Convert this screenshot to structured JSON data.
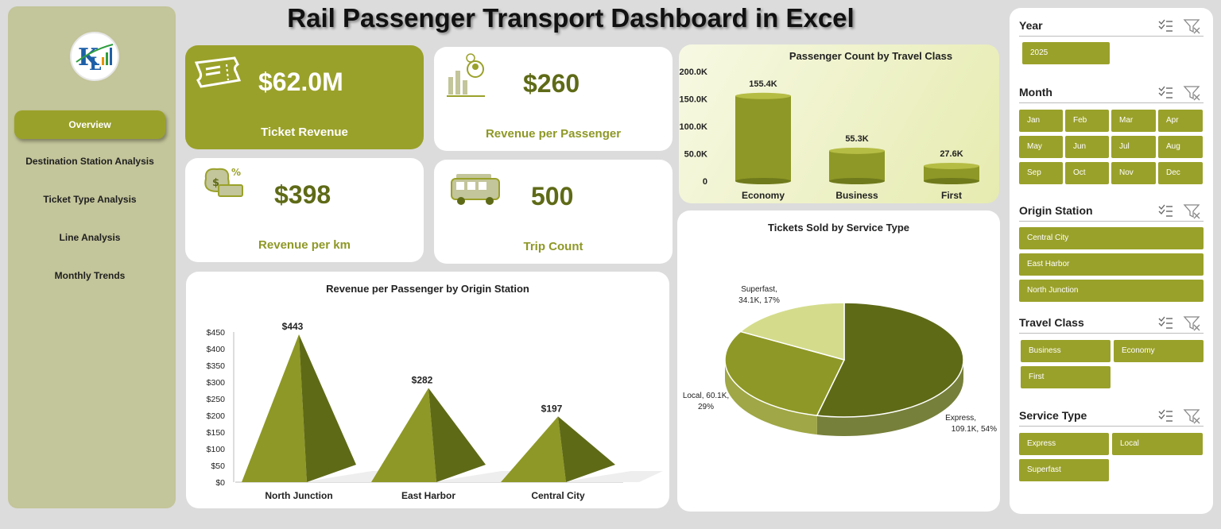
{
  "title": "Rail Passenger Transport Dashboard in Excel",
  "nav": [
    {
      "label": "Overview",
      "active": true
    },
    {
      "label": "Destination Station Analysis",
      "active": false
    },
    {
      "label": "Ticket Type Analysis",
      "active": false
    },
    {
      "label": "Line Analysis",
      "active": false
    },
    {
      "label": "Monthly Trends",
      "active": false
    }
  ],
  "kpis": {
    "ticket_revenue": {
      "value": "$62.0M",
      "label": "Ticket Revenue"
    },
    "revenue_per_passenger": {
      "value": "$260",
      "label": "Revenue per Passenger"
    },
    "revenue_per_km": {
      "value": "$398",
      "label": "Revenue per km"
    },
    "trip_count": {
      "value": "500",
      "label": "Trip Count"
    }
  },
  "charts": {
    "passenger_count": {
      "title": "Passenger Count by Travel Class",
      "ticks": [
        "200.0K",
        "150.0K",
        "100.0K",
        "50.0K",
        "0"
      ]
    },
    "tickets_sold": {
      "title": "Tickets Sold by Service Type"
    },
    "revenue_by_origin": {
      "title": "Revenue per Passenger by Origin Station",
      "ticks": [
        "$450",
        "$400",
        "$350",
        "$300",
        "$250",
        "$200",
        "$150",
        "$100",
        "$50",
        "$0"
      ]
    }
  },
  "chart_data": [
    {
      "type": "bar",
      "title": "Passenger Count by Travel Class",
      "categories": [
        "Economy",
        "Business",
        "First"
      ],
      "values": [
        155400,
        55300,
        27600
      ],
      "data_labels": [
        "155.4K",
        "55.3K",
        "27.6K"
      ],
      "ylim": [
        0,
        200000
      ],
      "color": "#9aa12a"
    },
    {
      "type": "pie",
      "title": "Tickets Sold by Service Type",
      "categories": [
        "Express",
        "Local",
        "Superfast"
      ],
      "values": [
        109100,
        60100,
        34100
      ],
      "percents": [
        54,
        29,
        17
      ],
      "data_labels": [
        "Express,",
        "109.1K, 54%",
        "Local, 60.1K,",
        "29%",
        "Superfast,",
        "34.1K, 17%"
      ],
      "colors": [
        "#5f6a17",
        "#8e9826",
        "#d4dc8c"
      ]
    },
    {
      "type": "bar",
      "title": "Revenue per Passenger by Origin Station",
      "categories": [
        "North Junction",
        "East Harbor",
        "Central City"
      ],
      "values": [
        443,
        282,
        197
      ],
      "data_labels": [
        "$443",
        "$282",
        "$197"
      ],
      "ylim": [
        0,
        450
      ],
      "color": "#9aa12a"
    }
  ],
  "slicers": {
    "year": {
      "title": "Year",
      "items": [
        "2025"
      ]
    },
    "month": {
      "title": "Month",
      "items": [
        "Jan",
        "Feb",
        "Mar",
        "Apr",
        "May",
        "Jun",
        "Jul",
        "Aug",
        "Sep",
        "Oct",
        "Nov",
        "Dec"
      ]
    },
    "origin": {
      "title": "Origin Station",
      "items": [
        "Central City",
        "East Harbor",
        "North Junction"
      ]
    },
    "travel_class": {
      "title": "Travel Class",
      "items": [
        "Business",
        "Economy",
        "First"
      ]
    },
    "service_type": {
      "title": "Service Type",
      "items": [
        "Express",
        "Local",
        "Superfast"
      ]
    }
  },
  "colors": {
    "accent": "#9aa12a",
    "accent_dark": "#5f6a17",
    "sidebar": "#c3c59a",
    "light_card": "#eef1c6"
  }
}
